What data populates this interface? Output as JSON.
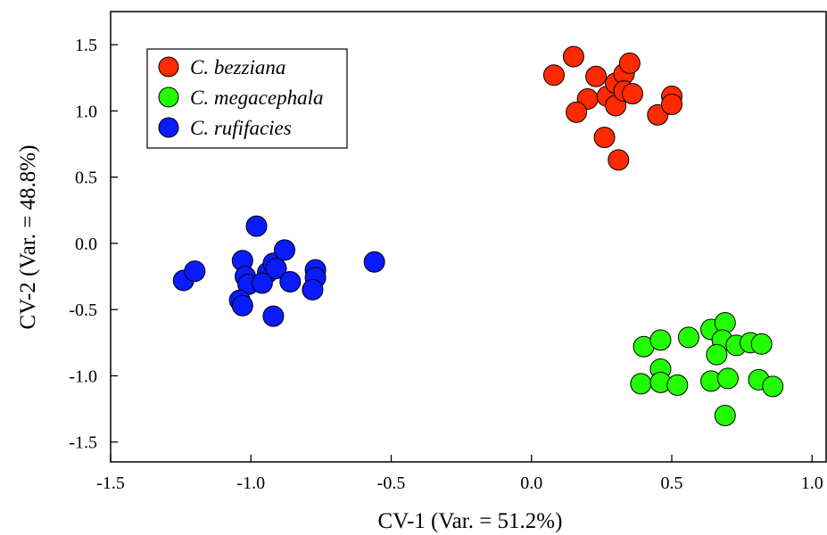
{
  "chart_data": {
    "type": "scatter",
    "xlabel": "CV-1 (Var. = 51.2%)",
    "ylabel": "CV-2 (Var. = 48.8%)",
    "xlim": [
      -1.5,
      1.05
    ],
    "ylim": [
      -1.65,
      1.75
    ],
    "xticks": [
      -1.5,
      -1.0,
      -0.5,
      0.0,
      0.5,
      1.0
    ],
    "xtick_labels": [
      "-1.5",
      "-1.0",
      "-0.5",
      "0.0",
      "0.5",
      "1.0"
    ],
    "yticks": [
      1.5,
      1.0,
      0.5,
      0.0,
      -0.5,
      -1.0,
      -1.5
    ],
    "ytick_labels": [
      "1.5",
      "1.0",
      "0.5",
      "0.0",
      "-0.5",
      "-1.0",
      "-1.5"
    ],
    "grid": false,
    "legend_position": "top-left",
    "series": [
      {
        "name": "C. bezziana",
        "color": "#ff2a00",
        "points": [
          {
            "x": 0.08,
            "y": 1.27
          },
          {
            "x": 0.15,
            "y": 1.41
          },
          {
            "x": 0.23,
            "y": 1.26
          },
          {
            "x": 0.2,
            "y": 1.09
          },
          {
            "x": 0.16,
            "y": 0.99
          },
          {
            "x": 0.27,
            "y": 1.11
          },
          {
            "x": 0.3,
            "y": 1.04
          },
          {
            "x": 0.3,
            "y": 1.21
          },
          {
            "x": 0.33,
            "y": 1.28
          },
          {
            "x": 0.35,
            "y": 1.36
          },
          {
            "x": 0.33,
            "y": 1.15
          },
          {
            "x": 0.36,
            "y": 1.13
          },
          {
            "x": 0.26,
            "y": 0.8
          },
          {
            "x": 0.31,
            "y": 0.63
          },
          {
            "x": 0.45,
            "y": 0.97
          },
          {
            "x": 0.5,
            "y": 1.11
          },
          {
            "x": 0.5,
            "y": 1.05
          }
        ]
      },
      {
        "name": "C. megacephala",
        "color": "#22ff00",
        "points": [
          {
            "x": 0.4,
            "y": -0.78
          },
          {
            "x": 0.46,
            "y": -0.73
          },
          {
            "x": 0.56,
            "y": -0.71
          },
          {
            "x": 0.64,
            "y": -0.65
          },
          {
            "x": 0.69,
            "y": -0.6
          },
          {
            "x": 0.68,
            "y": -0.73
          },
          {
            "x": 0.66,
            "y": -0.84
          },
          {
            "x": 0.73,
            "y": -0.77
          },
          {
            "x": 0.78,
            "y": -0.75
          },
          {
            "x": 0.82,
            "y": -0.76
          },
          {
            "x": 0.46,
            "y": -0.95
          },
          {
            "x": 0.39,
            "y": -1.06
          },
          {
            "x": 0.46,
            "y": -1.05
          },
          {
            "x": 0.52,
            "y": -1.07
          },
          {
            "x": 0.64,
            "y": -1.04
          },
          {
            "x": 0.7,
            "y": -1.02
          },
          {
            "x": 0.81,
            "y": -1.03
          },
          {
            "x": 0.86,
            "y": -1.08
          },
          {
            "x": 0.69,
            "y": -1.3
          }
        ]
      },
      {
        "name": "C. rufifacies",
        "color": "#0a1cff",
        "points": [
          {
            "x": -1.24,
            "y": -0.28
          },
          {
            "x": -1.2,
            "y": -0.21
          },
          {
            "x": -0.98,
            "y": 0.13
          },
          {
            "x": -1.03,
            "y": -0.13
          },
          {
            "x": -1.02,
            "y": -0.25
          },
          {
            "x": -1.01,
            "y": -0.31
          },
          {
            "x": -0.94,
            "y": -0.22
          },
          {
            "x": -0.92,
            "y": -0.15
          },
          {
            "x": -0.91,
            "y": -0.19
          },
          {
            "x": -0.96,
            "y": -0.3
          },
          {
            "x": -0.88,
            "y": -0.05
          },
          {
            "x": -0.86,
            "y": -0.29
          },
          {
            "x": -0.77,
            "y": -0.2
          },
          {
            "x": -0.77,
            "y": -0.26
          },
          {
            "x": -0.78,
            "y": -0.35
          },
          {
            "x": -1.04,
            "y": -0.43
          },
          {
            "x": -1.03,
            "y": -0.47
          },
          {
            "x": -0.92,
            "y": -0.55
          },
          {
            "x": -0.56,
            "y": -0.14
          }
        ]
      }
    ]
  }
}
